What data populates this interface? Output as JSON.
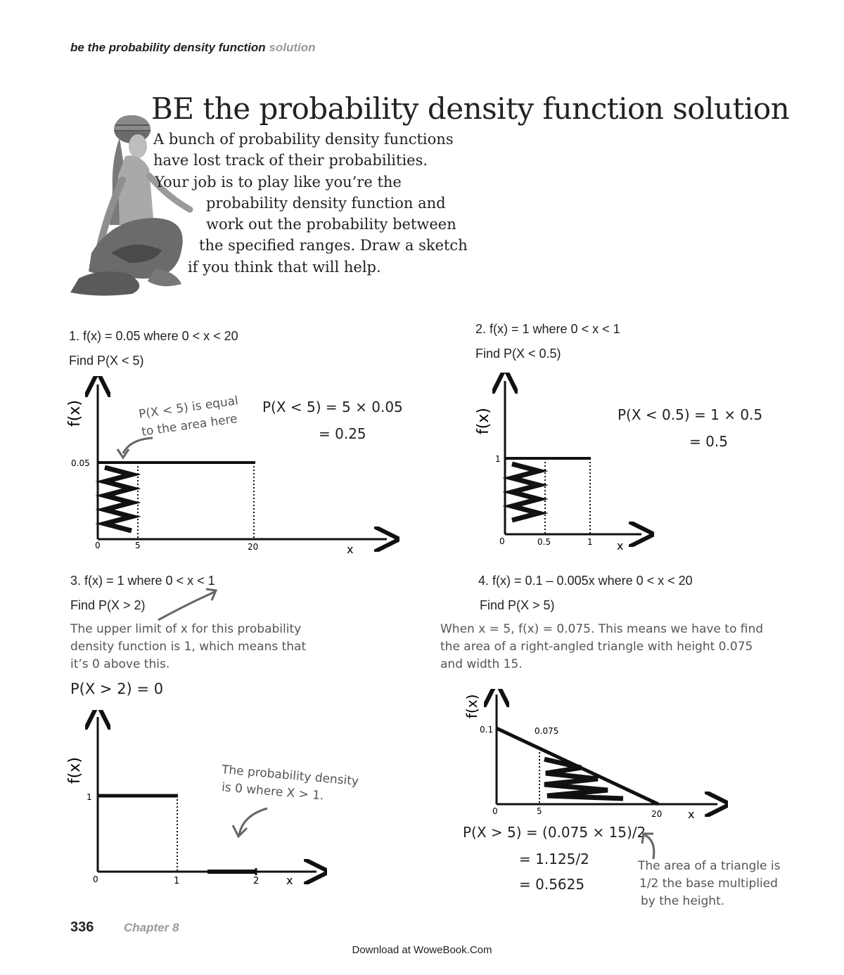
{
  "header": {
    "main": "be the probability density function",
    "accent": "solution"
  },
  "title": "BE the probability density function solution",
  "intro": [
    "A bunch of probability density functions",
    "have lost track of their probabilities.",
    "Your job is to play like you’re the",
    "probability density function and",
    "work out the probability between",
    "the specified ranges.  Draw a sketch",
    "if you think that will help."
  ],
  "problems": [
    {
      "question": "1.  f(x) = 0.05 where 0 < x < 20",
      "find": "Find P(X < 5)",
      "answer": [
        "P(X < 5) = 5 × 0.05",
        "= 0.25"
      ],
      "note": [
        "P(X < 5) is equal",
        "to the area here"
      ],
      "axis": {
        "y_label": "f(x)",
        "x_label": "x",
        "y_tick": "0.05",
        "x_ticks": [
          "0",
          "5",
          "20"
        ]
      }
    },
    {
      "question": "2.  f(x) = 1 where 0 < x < 1",
      "find": "Find P(X < 0.5)",
      "answer": [
        "P(X < 0.5) = 1 × 0.5",
        "= 0.5"
      ],
      "axis": {
        "y_label": "f(x)",
        "x_label": "x",
        "y_tick": "1",
        "x_ticks": [
          "0",
          "0.5",
          "1"
        ]
      }
    },
    {
      "question": "3.  f(x) = 1 where 0 < x < 1",
      "find": "Find P(X > 2)",
      "explanation": [
        "The upper limit of x for this probability",
        "density function is 1, which means that",
        "it’s 0 above this."
      ],
      "answer": [
        "P(X > 2) = 0"
      ],
      "note": [
        "The probability density",
        "is 0 where X > 1."
      ],
      "axis": {
        "y_label": "f(x)",
        "x_label": "x",
        "y_tick": "1",
        "x_ticks": [
          "0",
          "1",
          "2"
        ]
      }
    },
    {
      "question": "4.  f(x) = 0.1 – 0.005x where 0 < x < 20",
      "find": "Find P(X > 5)",
      "explanation": [
        "When x = 5, f(x) = 0.075. This means we have to find",
        "the area of a right-angled triangle with height 0.075",
        "and width 15."
      ],
      "answer": [
        "P(X > 5) = (0.075 × 15)/2",
        "= 1.125/2",
        "= 0.5625"
      ],
      "note": [
        "The area of a triangle is",
        "1/2 the base multiplied",
        "by the height."
      ],
      "axis": {
        "y_label": "f(x)",
        "x_label": "x",
        "y_tick": "0.1",
        "point_label": "0.075",
        "x_ticks": [
          "0",
          "5",
          "20"
        ]
      }
    }
  ],
  "footer": {
    "page": "336",
    "chapter": "Chapter 8",
    "download": "Download at WoweBook.Com"
  }
}
